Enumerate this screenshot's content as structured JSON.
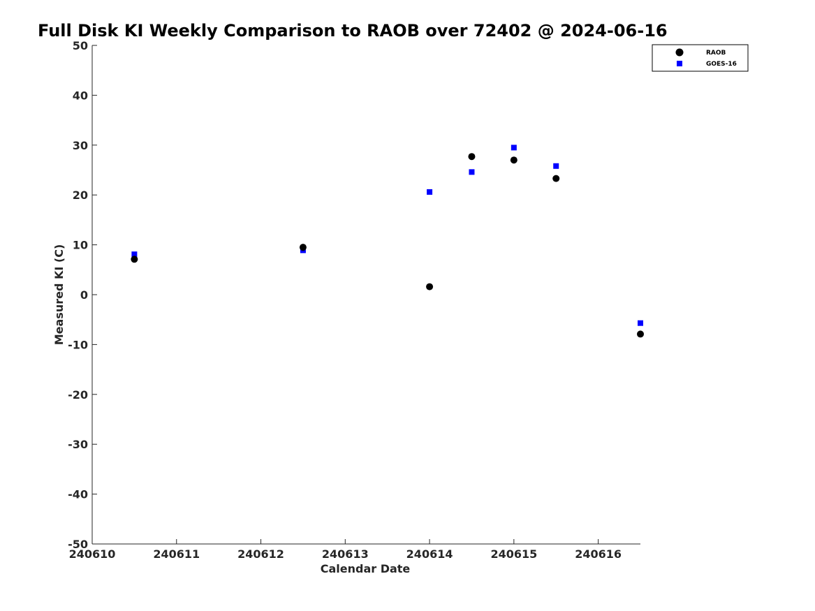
{
  "chart_data": {
    "type": "scatter",
    "title": "Full Disk KI Weekly Comparison to RAOB over 72402 @ 2024-06-16",
    "xlabel": "Calendar Date",
    "ylabel": "Measured KI (C)",
    "xlim": [
      240610,
      240616.5
    ],
    "ylim": [
      -50,
      50
    ],
    "xticks": [
      240610,
      240611,
      240612,
      240613,
      240614,
      240615,
      240616
    ],
    "xtick_labels": [
      "240610",
      "240611",
      "240612",
      "240613",
      "240614",
      "240615",
      "240616"
    ],
    "yticks": [
      -50,
      -40,
      -30,
      -20,
      -10,
      0,
      10,
      20,
      30,
      40,
      50
    ],
    "ytick_labels": [
      "-50",
      "-40",
      "-30",
      "-20",
      "-10",
      "0",
      "10",
      "20",
      "30",
      "40",
      "50"
    ],
    "grid": false,
    "legend_position": "top-right",
    "series": [
      {
        "name": "RAOB",
        "marker": "circle",
        "color": "#000000",
        "points": [
          {
            "x": 240610.5,
            "y": 7.1
          },
          {
            "x": 240612.5,
            "y": 9.5
          },
          {
            "x": 240614.0,
            "y": 1.6
          },
          {
            "x": 240614.5,
            "y": 27.7
          },
          {
            "x": 240615.0,
            "y": 27.0
          },
          {
            "x": 240615.5,
            "y": 23.3
          },
          {
            "x": 240616.5,
            "y": -7.9
          }
        ]
      },
      {
        "name": "GOES-16",
        "marker": "square",
        "color": "#0000ff",
        "points": [
          {
            "x": 240610.5,
            "y": 8.1
          },
          {
            "x": 240612.5,
            "y": 8.9
          },
          {
            "x": 240614.0,
            "y": 20.6
          },
          {
            "x": 240614.5,
            "y": 24.6
          },
          {
            "x": 240615.0,
            "y": 29.5
          },
          {
            "x": 240615.5,
            "y": 25.8
          },
          {
            "x": 240616.5,
            "y": -5.7
          }
        ]
      }
    ]
  }
}
